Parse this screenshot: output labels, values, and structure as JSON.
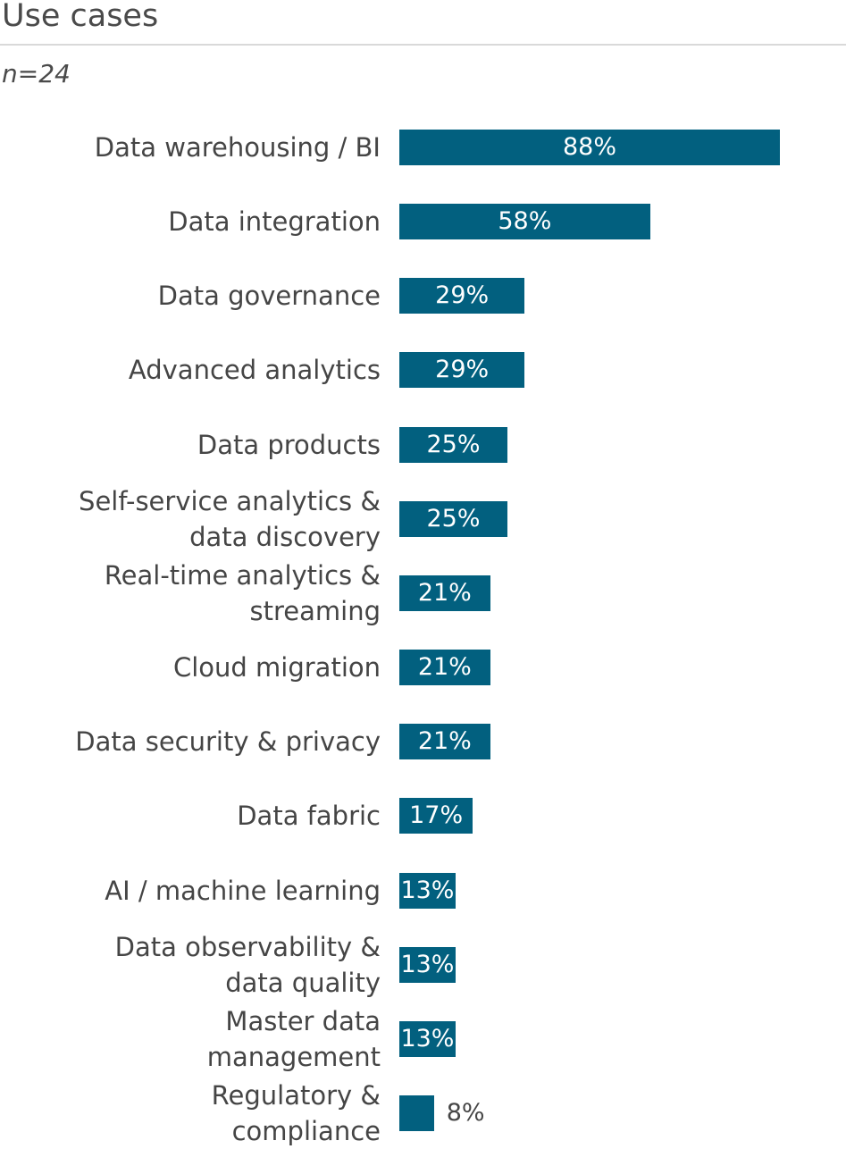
{
  "chart_data": {
    "type": "bar",
    "orientation": "horizontal",
    "title": "Use cases",
    "subtitle": "n=24",
    "xlabel": "",
    "ylabel": "",
    "xlim": [
      0,
      100
    ],
    "grid": false,
    "bar_color": "#02607f",
    "categories": [
      [
        "Data warehousing / BI"
      ],
      [
        "Data integration"
      ],
      [
        "Data governance"
      ],
      [
        "Advanced analytics"
      ],
      [
        "Data products"
      ],
      [
        "Self-service analytics &",
        "data discovery"
      ],
      [
        "Real-time analytics &",
        "streaming"
      ],
      [
        "Cloud migration"
      ],
      [
        "Data security & privacy"
      ],
      [
        "Data fabric"
      ],
      [
        "AI / machine learning"
      ],
      [
        "Data observability &",
        "data quality"
      ],
      [
        "Master data",
        "management"
      ],
      [
        "Regulatory &",
        "compliance"
      ]
    ],
    "values": [
      88,
      58,
      29,
      29,
      25,
      25,
      21,
      21,
      21,
      17,
      13,
      13,
      13,
      8
    ],
    "value_labels": [
      "88%",
      "58%",
      "29%",
      "29%",
      "25%",
      "25%",
      "21%",
      "21%",
      "21%",
      "17%",
      "13%",
      "13%",
      "13%",
      "8%"
    ]
  }
}
